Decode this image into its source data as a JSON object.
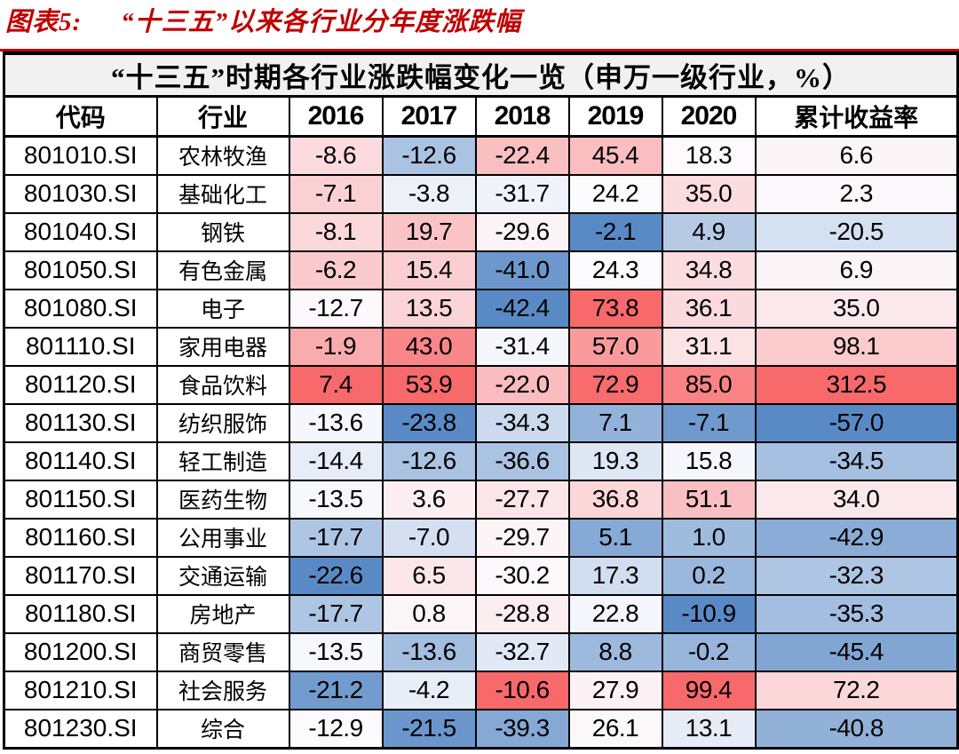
{
  "figure": {
    "label": "图表5:",
    "title": "“十三五”以来各行业分年度涨跌幅",
    "accent_color": "#c00000"
  },
  "table": {
    "title": "“十三五”时期各行业涨跌幅变化一览（申万一级行业，%）",
    "title_bg": "#f1f1f1",
    "border_color": "#000000"
  },
  "heatmap": {
    "min_color": "#5A8AC6",
    "mid_color": "#FCFCFF",
    "max_color": "#F8696B",
    "midpoint": "50th-percentile-per-column"
  },
  "chart_data": {
    "type": "heatmap",
    "title": "“十三五”时期各行业涨跌幅变化一览（申万一级行业，%）",
    "columns": [
      "代码",
      "行业",
      "2016",
      "2017",
      "2018",
      "2019",
      "2020",
      "累计收益率"
    ],
    "value_columns": [
      "2016",
      "2017",
      "2018",
      "2019",
      "2020",
      "累计收益率"
    ],
    "rows": [
      {
        "code": "801010.SI",
        "industry": "农林牧渔",
        "values": [
          -8.6,
          -12.6,
          -22.4,
          45.4,
          18.3,
          6.6
        ]
      },
      {
        "code": "801030.SI",
        "industry": "基础化工",
        "values": [
          -7.1,
          -3.8,
          -31.7,
          24.2,
          35.0,
          2.3
        ]
      },
      {
        "code": "801040.SI",
        "industry": "钢铁",
        "values": [
          -8.1,
          19.7,
          -29.6,
          -2.1,
          4.9,
          -20.5
        ]
      },
      {
        "code": "801050.SI",
        "industry": "有色金属",
        "values": [
          -6.2,
          15.4,
          -41.0,
          24.3,
          34.8,
          6.9
        ]
      },
      {
        "code": "801080.SI",
        "industry": "电子",
        "values": [
          -12.7,
          13.5,
          -42.4,
          73.8,
          36.1,
          35.0
        ]
      },
      {
        "code": "801110.SI",
        "industry": "家用电器",
        "values": [
          -1.9,
          43.0,
          -31.4,
          57.0,
          31.1,
          98.1
        ]
      },
      {
        "code": "801120.SI",
        "industry": "食品饮料",
        "values": [
          7.4,
          53.9,
          -22.0,
          72.9,
          85.0,
          312.5
        ]
      },
      {
        "code": "801130.SI",
        "industry": "纺织服饰",
        "values": [
          -13.6,
          -23.8,
          -34.3,
          7.1,
          -7.1,
          -57.0
        ]
      },
      {
        "code": "801140.SI",
        "industry": "轻工制造",
        "values": [
          -14.4,
          -12.6,
          -36.6,
          19.3,
          15.8,
          -34.5
        ]
      },
      {
        "code": "801150.SI",
        "industry": "医药生物",
        "values": [
          -13.5,
          3.6,
          -27.7,
          36.8,
          51.1,
          34.0
        ]
      },
      {
        "code": "801160.SI",
        "industry": "公用事业",
        "values": [
          -17.7,
          -7.0,
          -29.7,
          5.1,
          1.0,
          -42.9
        ]
      },
      {
        "code": "801170.SI",
        "industry": "交通运输",
        "values": [
          -22.6,
          6.5,
          -30.2,
          17.3,
          0.2,
          -32.3
        ]
      },
      {
        "code": "801180.SI",
        "industry": "房地产",
        "values": [
          -17.7,
          0.8,
          -28.8,
          22.8,
          -10.9,
          -35.3
        ]
      },
      {
        "code": "801200.SI",
        "industry": "商贸零售",
        "values": [
          -13.5,
          -13.6,
          -32.7,
          8.8,
          -0.2,
          -45.4
        ]
      },
      {
        "code": "801210.SI",
        "industry": "社会服务",
        "values": [
          -21.2,
          -4.2,
          -10.6,
          27.9,
          99.4,
          72.2
        ]
      },
      {
        "code": "801230.SI",
        "industry": "综合",
        "values": [
          -12.9,
          -21.5,
          -39.3,
          26.1,
          13.1,
          -40.8
        ]
      }
    ],
    "value_format": "one-decimal",
    "layout": {
      "legend": "none",
      "grid": "black 2px cell borders",
      "color_scale": "blue-white-red per column"
    }
  }
}
